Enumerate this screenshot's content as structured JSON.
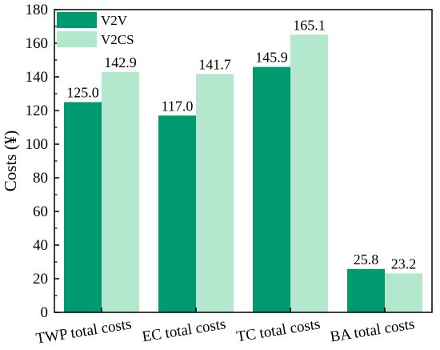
{
  "chart_data": {
    "type": "bar",
    "categories": [
      "TWP total costs",
      "EC total costs",
      "TC total costs",
      "BA total costs"
    ],
    "series": [
      {
        "name": "V2V",
        "values": [
          125.0,
          117.0,
          145.9,
          25.8
        ],
        "color": "#009a70"
      },
      {
        "name": "V2CS",
        "values": [
          142.9,
          141.7,
          165.1,
          23.2
        ],
        "color": "#b3e8cf"
      }
    ],
    "value_labels": [
      [
        "125.0",
        "117.0",
        "145.9",
        "25.8"
      ],
      [
        "142.9",
        "141.7",
        "165.1",
        "23.2"
      ]
    ],
    "ylabel": "Costs (¥)",
    "ylim": [
      0,
      180
    ],
    "yticks": [
      "0",
      "20",
      "40",
      "60",
      "80",
      "100",
      "120",
      "140",
      "160",
      "180"
    ],
    "yticks_values": [
      0,
      20,
      40,
      60,
      80,
      100,
      120,
      140,
      160,
      180
    ],
    "legend_position": "top-left",
    "grid": false
  }
}
